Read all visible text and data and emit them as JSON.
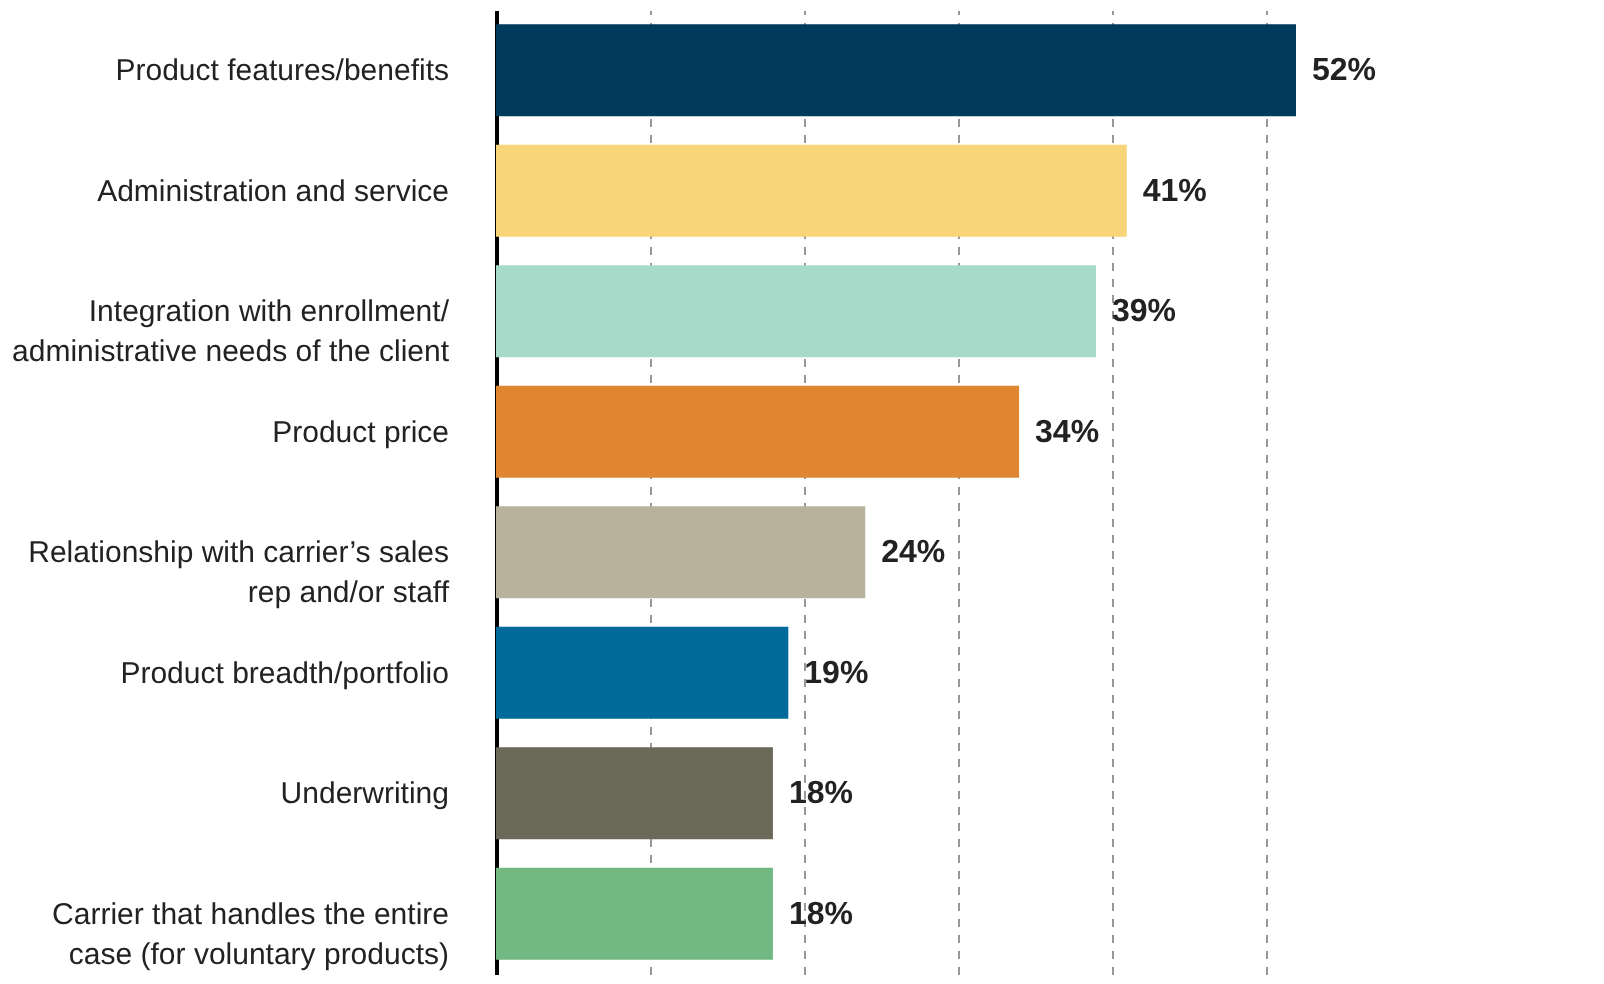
{
  "chart_data": {
    "type": "bar",
    "orientation": "horizontal",
    "categories": [
      "Product features/benefits",
      "Administration and service",
      "Integration with enrollment/\nadministrative needs of the client",
      "Product price",
      "Relationship with carrier’s sales\nrep and/or staff",
      "Product breadth/portfolio",
      "Underwriting",
      "Carrier that handles the entire\ncase (for voluntary products)"
    ],
    "values": [
      52,
      41,
      39,
      34,
      24,
      19,
      18,
      18
    ],
    "colors": [
      "#003a5d",
      "#f9d57a",
      "#a7dbc9",
      "#e08633",
      "#b8b29c",
      "#006b9b",
      "#6b6959",
      "#72b883"
    ],
    "value_labels": [
      "52%",
      "41%",
      "39%",
      "34%",
      "24%",
      "19%",
      "18%",
      "18%"
    ],
    "xticks": [
      {
        "value": 0,
        "label": null
      },
      {
        "value": 10,
        "label": null
      },
      {
        "value": 20,
        "label": null
      },
      {
        "value": 30,
        "label": null
      },
      {
        "value": 40,
        "label": null
      },
      {
        "value": 50,
        "label": null
      }
    ],
    "grid": "x",
    "tick_labels": "y"
  }
}
